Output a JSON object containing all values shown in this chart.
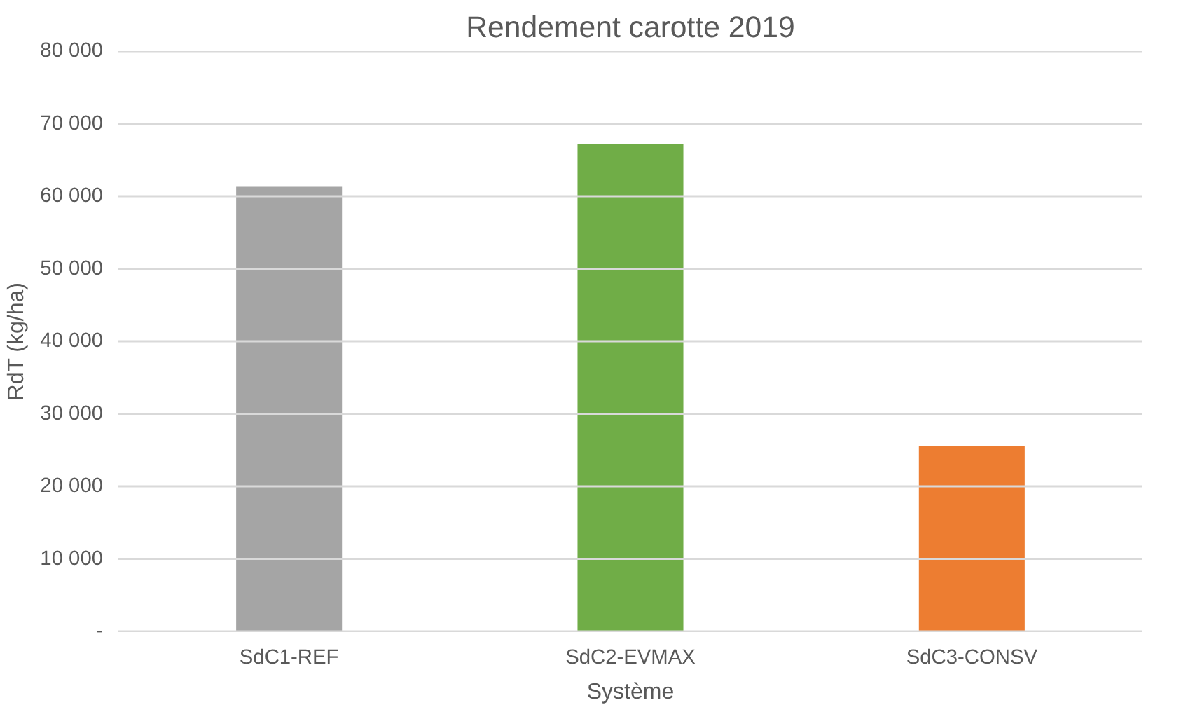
{
  "chart_data": {
    "type": "bar",
    "title": "Rendement carotte 2019",
    "xlabel": "Système",
    "ylabel": "RdT (kg/ha)",
    "categories": [
      "SdC1-REF",
      "SdC2-EVMAX",
      "SdC3-CONSV"
    ],
    "values": [
      61300,
      67200,
      25500
    ],
    "colors": [
      "#a5a5a5",
      "#70ad47",
      "#ed7d31"
    ],
    "ylim": [
      0,
      80000
    ],
    "yticks": [
      {
        "value": 0,
        "label": "-"
      },
      {
        "value": 10000,
        "label": "10 000"
      },
      {
        "value": 20000,
        "label": "20 000"
      },
      {
        "value": 30000,
        "label": "30 000"
      },
      {
        "value": 40000,
        "label": "40 000"
      },
      {
        "value": 50000,
        "label": "50 000"
      },
      {
        "value": 60000,
        "label": "60 000"
      },
      {
        "value": 70000,
        "label": "70 000"
      },
      {
        "value": 80000,
        "label": "80 000"
      }
    ],
    "grid": "y"
  }
}
